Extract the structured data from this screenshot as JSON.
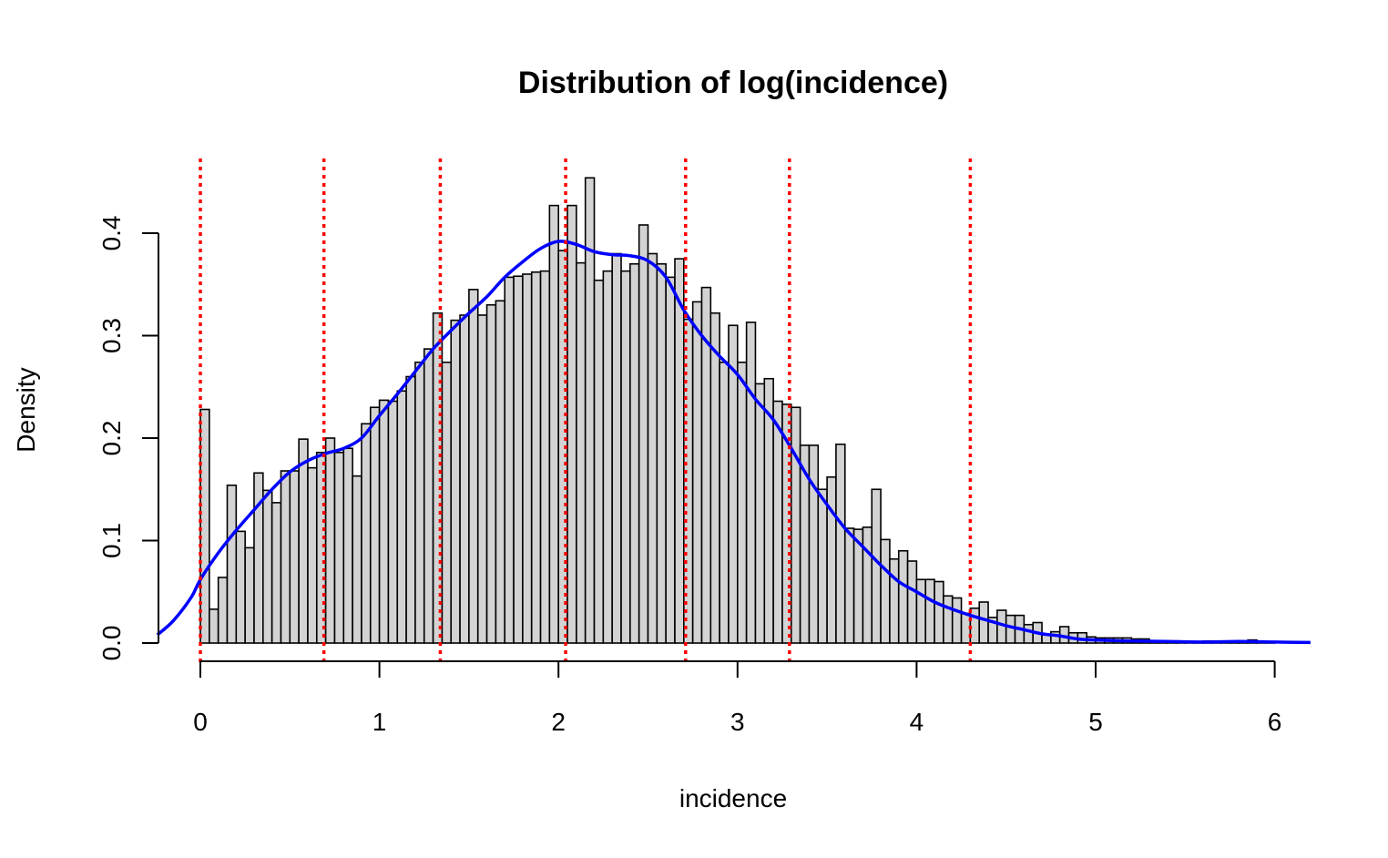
{
  "chart_data": {
    "type": "bar",
    "title": "Distribution of log(incidence)",
    "xlabel": "incidence",
    "ylabel": "Density",
    "xlim": [
      -0.24,
      6.2
    ],
    "ylim": [
      0,
      0.4
    ],
    "x_ticks": [
      "0",
      "1",
      "2",
      "3",
      "4",
      "5",
      "6"
    ],
    "y_ticks": [
      "0.0",
      "0.1",
      "0.2",
      "0.3",
      "0.4"
    ],
    "grid": false,
    "bar_color": "#d3d3d3",
    "density_color": "#0000ff",
    "quantile_color": "#ff0000",
    "bin_width": 0.05,
    "bin_start": 0.0,
    "histogram_density": [
      0.228,
      0.033,
      0.064,
      0.154,
      0.109,
      0.093,
      0.166,
      0.149,
      0.137,
      0.168,
      0.168,
      0.199,
      0.171,
      0.186,
      0.2,
      0.186,
      0.19,
      0.163,
      0.214,
      0.23,
      0.237,
      0.236,
      0.246,
      0.26,
      0.274,
      0.287,
      0.322,
      0.274,
      0.315,
      0.32,
      0.345,
      0.32,
      0.33,
      0.334,
      0.357,
      0.358,
      0.36,
      0.362,
      0.363,
      0.427,
      0.383,
      0.427,
      0.371,
      0.454,
      0.354,
      0.363,
      0.38,
      0.363,
      0.37,
      0.408,
      0.38,
      0.37,
      0.357,
      0.375,
      0.316,
      0.333,
      0.347,
      0.322,
      0.274,
      0.31,
      0.274,
      0.313,
      0.253,
      0.258,
      0.236,
      0.233,
      0.23,
      0.193,
      0.193,
      0.15,
      0.162,
      0.194,
      0.112,
      0.111,
      0.113,
      0.15,
      0.101,
      0.082,
      0.09,
      0.08,
      0.062,
      0.062,
      0.06,
      0.046,
      0.044,
      0.029,
      0.034,
      0.04,
      0.025,
      0.032,
      0.027,
      0.027,
      0.018,
      0.02,
      0.008,
      0.011,
      0.016,
      0.01,
      0.01,
      0.006,
      0.005,
      0.005,
      0.005,
      0.005,
      0.004,
      0.004,
      0.001,
      0.001,
      0.002,
      0.002,
      0.001,
      0.001,
      0.002,
      0.002,
      0.001,
      0.001,
      0.001,
      0.003,
      0.001,
      0.001,
      0.0,
      0.0,
      0.0,
      0.0,
      0.0,
      0.0,
      0.0,
      0.0,
      0.0,
      0.0,
      0.0,
      0.0,
      0.0,
      0.0,
      0.0,
      0.0,
      0.0,
      0.0,
      0.001,
      0.003
    ],
    "density_curve": {
      "x": [
        -0.24,
        -0.15,
        -0.05,
        0.0,
        0.1,
        0.2,
        0.3,
        0.4,
        0.5,
        0.6,
        0.7,
        0.8,
        0.9,
        1.0,
        1.1,
        1.2,
        1.3,
        1.4,
        1.5,
        1.6,
        1.7,
        1.8,
        1.9,
        2.0,
        2.1,
        2.2,
        2.3,
        2.4,
        2.5,
        2.6,
        2.7,
        2.8,
        2.9,
        3.0,
        3.1,
        3.2,
        3.3,
        3.4,
        3.5,
        3.6,
        3.7,
        3.8,
        3.9,
        4.0,
        4.1,
        4.2,
        4.3,
        4.4,
        4.5,
        4.6,
        4.7,
        4.8,
        4.9,
        5.0,
        5.2,
        5.4,
        5.6,
        5.8,
        6.0,
        6.2
      ],
      "y": [
        0.008,
        0.022,
        0.045,
        0.062,
        0.088,
        0.11,
        0.13,
        0.15,
        0.167,
        0.178,
        0.185,
        0.19,
        0.2,
        0.222,
        0.243,
        0.265,
        0.287,
        0.305,
        0.322,
        0.338,
        0.357,
        0.372,
        0.385,
        0.392,
        0.389,
        0.382,
        0.379,
        0.378,
        0.373,
        0.357,
        0.325,
        0.3,
        0.28,
        0.262,
        0.238,
        0.218,
        0.19,
        0.16,
        0.135,
        0.112,
        0.094,
        0.076,
        0.06,
        0.05,
        0.04,
        0.033,
        0.027,
        0.022,
        0.017,
        0.013,
        0.009,
        0.007,
        0.004,
        0.003,
        0.002,
        0.0015,
        0.001,
        0.0015,
        0.001,
        0.0005
      ]
    },
    "quantile_lines_x": [
      0.0,
      0.69,
      1.34,
      2.04,
      2.71,
      3.29,
      4.3
    ]
  }
}
